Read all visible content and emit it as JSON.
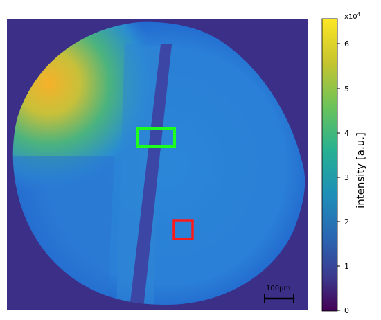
{
  "image": {
    "description_free": true,
    "colormap": "viridis",
    "colors": {
      "background": "#3b2f88",
      "sample_base": "#2a7fd6",
      "sample_edge": "#1f6fdc",
      "hotspot": "#f2a726",
      "hotspot_mid": "#9bc34a",
      "slot": "#3c46a5",
      "roi_green": "#1dff1d",
      "roi_red": "#ff1a1a",
      "scalebar": "#000000"
    }
  },
  "colorbar": {
    "exponent_label": "x10",
    "exponent_power": "4",
    "title": "intensity [a.u.]",
    "ticks": [
      "6",
      "5",
      "4",
      "3",
      "2",
      "1",
      "0"
    ]
  },
  "scalebar": {
    "label": "100µm"
  },
  "regions_of_interest": [
    {
      "name": "green-roi",
      "color": "#1dff1d"
    },
    {
      "name": "red-roi",
      "color": "#ff1a1a"
    }
  ]
}
